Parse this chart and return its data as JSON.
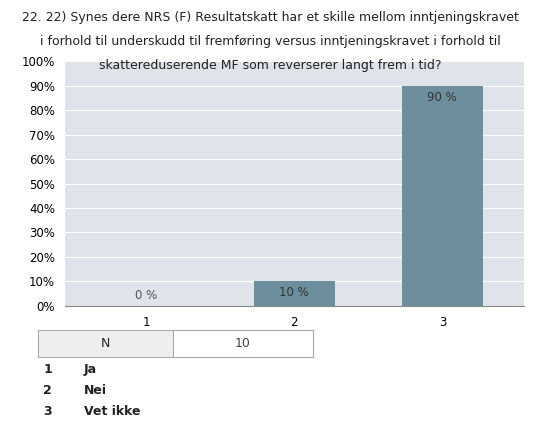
{
  "title_line1": "22. 22) Synes dere NRS (F) Resultatskatt har et skille mellom inntjeningskravet",
  "title_line2": "i forhold til underskudd til fremføring versus inntjeningskravet i forhold til",
  "title_line3": "skattereduserende MF som reverserer langt frem i tid?",
  "categories": [
    "1",
    "2",
    "3"
  ],
  "values": [
    0,
    10,
    90
  ],
  "bar_color": "#6d8f9d",
  "ylim": [
    0,
    100
  ],
  "yticks": [
    0,
    10,
    20,
    30,
    40,
    50,
    60,
    70,
    80,
    90,
    100
  ],
  "ytick_labels": [
    "0%",
    "10%",
    "20%",
    "30%",
    "40%",
    "50%",
    "60%",
    "70%",
    "80%",
    "90%",
    "100%"
  ],
  "value_labels": [
    "0 %",
    "10 %",
    "90 %"
  ],
  "n_label": "N",
  "n_value": "10",
  "legend": [
    {
      "num": "1",
      "label": "Ja"
    },
    {
      "num": "2",
      "label": "Nei"
    },
    {
      "num": "3",
      "label": "Vet ikke"
    }
  ],
  "fig_bg_color": "#ffffff",
  "plot_bg_color": "#dfe3ea",
  "title_fontsize": 9,
  "axis_fontsize": 8.5,
  "label_fontsize": 8.5
}
